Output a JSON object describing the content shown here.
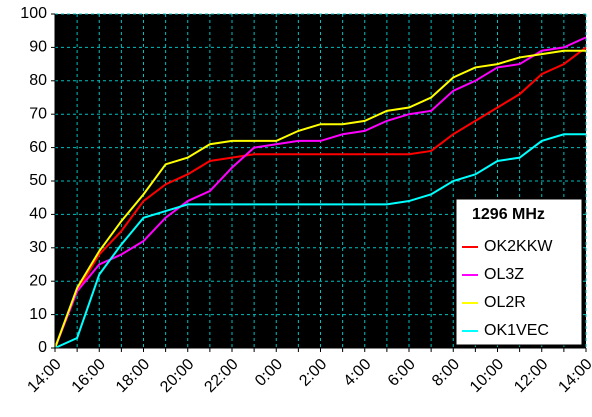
{
  "chart_data": {
    "type": "line",
    "categories": [
      "14:00",
      null,
      "16:00",
      null,
      "18:00",
      null,
      "20:00",
      null,
      "22:00",
      null,
      "0:00",
      null,
      "2:00",
      null,
      "4:00",
      null,
      "6:00",
      null,
      "8:00",
      null,
      "10:00",
      null,
      "12:00",
      null,
      "14:00"
    ],
    "series": [
      {
        "name": "OK2KKW",
        "color": "#ff0000",
        "values": [
          0,
          17,
          28,
          35,
          44,
          49,
          52,
          56,
          57,
          58,
          58,
          58,
          58,
          58,
          58,
          58,
          58,
          59,
          64,
          68,
          72,
          76,
          82,
          85,
          90
        ]
      },
      {
        "name": "OL3Z",
        "color": "#ff00ff",
        "values": [
          0,
          17,
          25,
          28,
          32,
          39,
          44,
          47,
          54,
          60,
          61,
          62,
          62,
          64,
          65,
          68,
          70,
          71,
          77,
          80,
          84,
          85,
          89,
          90,
          93
        ]
      },
      {
        "name": "OL2R",
        "color": "#ffff00",
        "values": [
          0,
          18,
          29,
          38,
          46,
          55,
          57,
          61,
          62,
          62,
          62,
          65,
          67,
          67,
          68,
          71,
          72,
          75,
          81,
          84,
          85,
          87,
          88,
          89,
          89
        ]
      },
      {
        "name": "OK1VEC",
        "color": "#00ffff",
        "values": [
          0,
          3,
          22,
          31,
          39,
          41,
          43,
          43,
          43,
          43,
          43,
          43,
          43,
          43,
          43,
          43,
          44,
          46,
          50,
          52,
          56,
          57,
          62,
          64,
          64
        ]
      }
    ],
    "legend_title": "1296 MHz",
    "ylim": [
      0,
      100
    ],
    "yticks": [
      0,
      10,
      20,
      30,
      40,
      50,
      60,
      70,
      80,
      90,
      100
    ],
    "grid": true,
    "legend": "lower right",
    "plot_background": "#000000"
  }
}
